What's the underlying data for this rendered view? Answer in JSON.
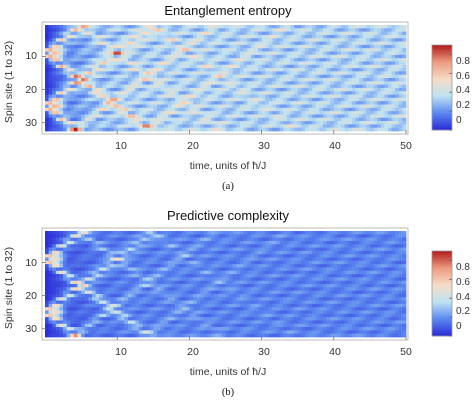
{
  "chart_data": [
    {
      "type": "heatmap",
      "title": "Entanglement entropy",
      "xlabel": "time, units of ħ/J",
      "ylabel": "Spin site (1 to 32)",
      "x_range": [
        0,
        50
      ],
      "y_range": [
        1,
        32
      ],
      "x_ticks": [
        "10",
        "20",
        "30",
        "40",
        "50"
      ],
      "y_ticks": [
        "10",
        "20",
        "30"
      ],
      "colorbar": {
        "min": 0,
        "max": 0.9,
        "ticks": [
          "0.8",
          "0.6",
          "0.4",
          "0.2",
          "0"
        ]
      },
      "colormap": [
        "#2a2ad6",
        "#5c88f0",
        "#bfe2f2",
        "#f6dcc7",
        "#ec9a80",
        "#b01a1a"
      ],
      "pattern": {
        "sources": [
          9,
          25
        ],
        "peak_value": 0.9,
        "light_cone_speed": 1.6,
        "wave_period": 2.0,
        "background_level": 0.35,
        "decay": 0.04
      },
      "caption": "(a)"
    },
    {
      "type": "heatmap",
      "title": "Predictive complexity",
      "xlabel": "time, units of ħ/J",
      "ylabel": "Spin site (1 to 32)",
      "x_range": [
        0,
        50
      ],
      "y_range": [
        1,
        32
      ],
      "x_ticks": [
        "10",
        "20",
        "30",
        "40",
        "50"
      ],
      "y_ticks": [
        "10",
        "20",
        "30"
      ],
      "colorbar": {
        "min": 0,
        "max": 0.9,
        "ticks": [
          "0.8",
          "0.6",
          "0.4",
          "0.2",
          "0"
        ]
      },
      "colormap": [
        "#2a2ad6",
        "#5c88f0",
        "#bfe2f2",
        "#f6dcc7",
        "#ec9a80",
        "#b01a1a"
      ],
      "pattern": {
        "sources": [
          9,
          25
        ],
        "peak_value": 0.85,
        "light_cone_speed": 1.6,
        "wave_period": 2.0,
        "background_level": 0.18,
        "decay": 0.07
      },
      "caption": "(b)"
    }
  ]
}
